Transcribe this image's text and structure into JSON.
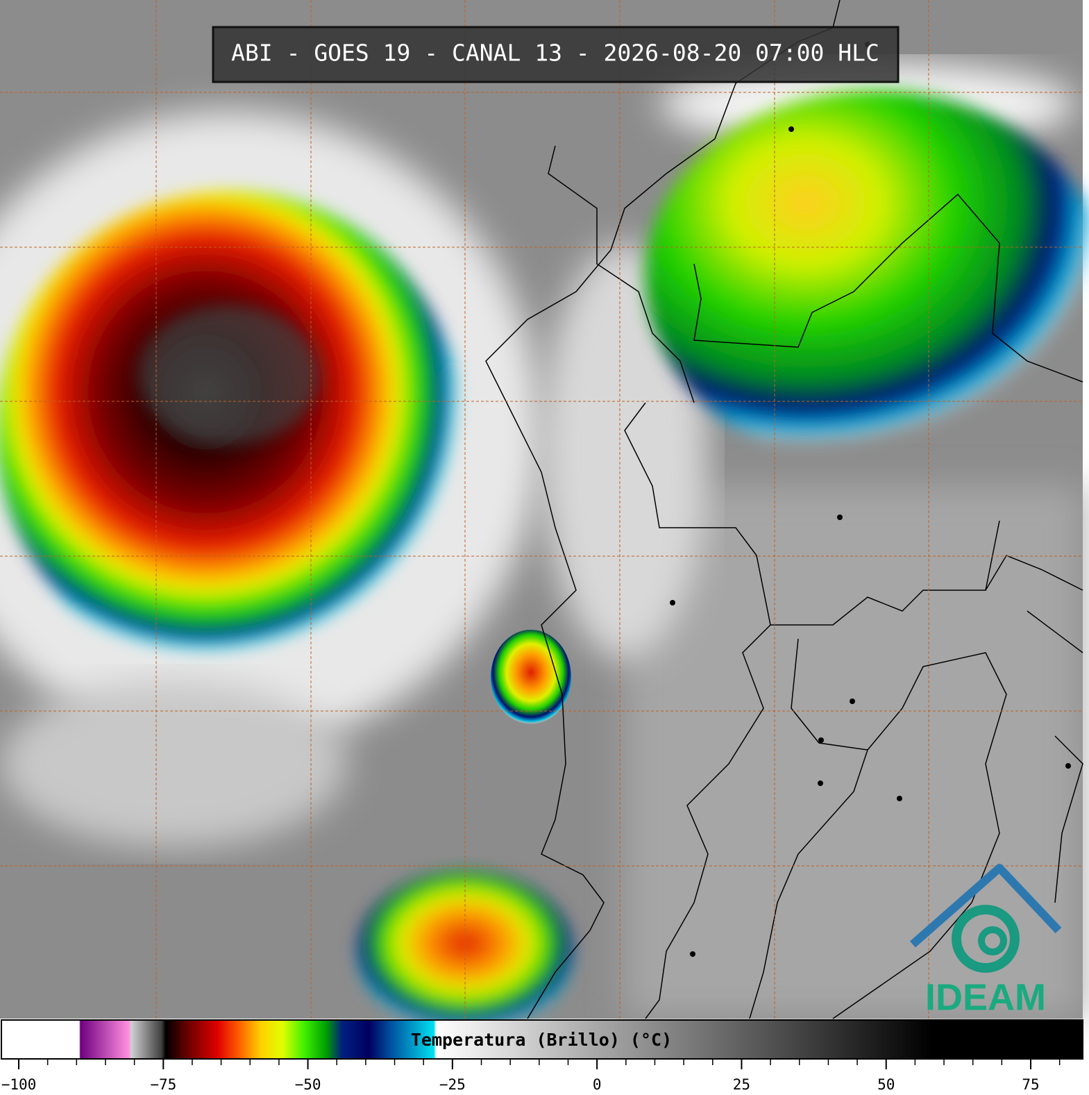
{
  "header": {
    "title": "ABI - GOES 19 - CANAL 13 - 2026-08-20 07:00 HLC"
  },
  "colorbar": {
    "label": "Temperatura (Brillo) (°C)",
    "range": [
      -103,
      84
    ],
    "ticks": [
      {
        "value": -100,
        "label": "−100"
      },
      {
        "value": -75,
        "label": "−75"
      },
      {
        "value": -50,
        "label": "−50"
      },
      {
        "value": -25,
        "label": "−25"
      },
      0,
      25,
      50,
      75
    ]
  },
  "logo": {
    "text": "IDEAM"
  }
}
